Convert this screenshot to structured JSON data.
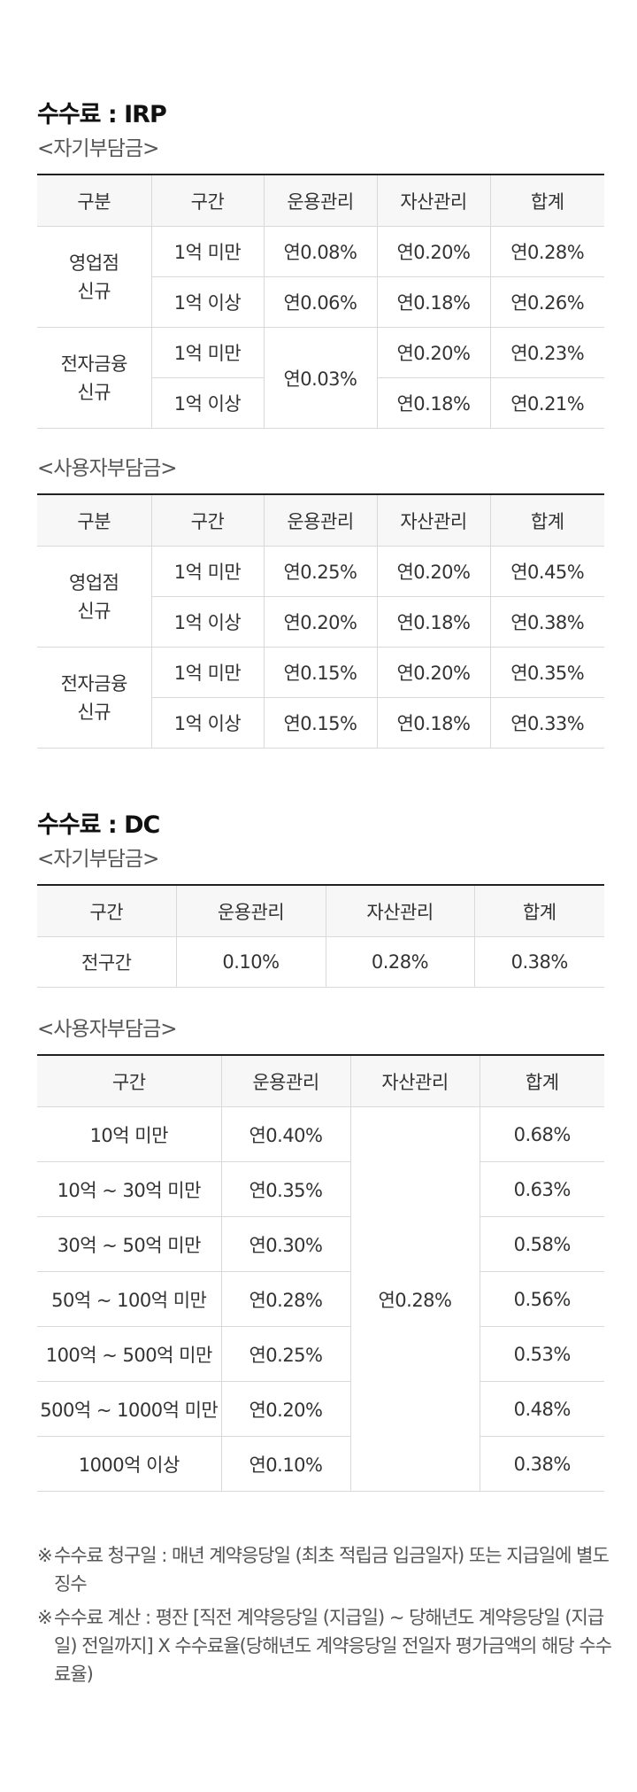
{
  "irp": {
    "title": "수수료 : IRP",
    "self": {
      "subtitle": "<자기부담금>",
      "headers": [
        "구분",
        "구간",
        "운용관리",
        "자산관리",
        "합계"
      ],
      "groups": [
        {
          "category": [
            "영업점",
            "신규"
          ],
          "rows": [
            {
              "range": "1억 미만",
              "mgmt": "연0.08%",
              "asset": "연0.20%",
              "total": "연0.28%"
            },
            {
              "range": "1억 이상",
              "mgmt": "연0.06%",
              "asset": "연0.18%",
              "total": "연0.26%"
            }
          ]
        },
        {
          "category": [
            "전자금융",
            "신규"
          ],
          "mgmt_merged": "연0.03%",
          "rows": [
            {
              "range": "1억 미만",
              "asset": "연0.20%",
              "total": "연0.23%"
            },
            {
              "range": "1억 이상",
              "asset": "연0.18%",
              "total": "연0.21%"
            }
          ]
        }
      ]
    },
    "employer": {
      "subtitle": "<사용자부담금>",
      "headers": [
        "구분",
        "구간",
        "운용관리",
        "자산관리",
        "합계"
      ],
      "groups": [
        {
          "category": [
            "영업점",
            "신규"
          ],
          "rows": [
            {
              "range": "1억 미만",
              "mgmt": "연0.25%",
              "asset": "연0.20%",
              "total": "연0.45%"
            },
            {
              "range": "1억 이상",
              "mgmt": "연0.20%",
              "asset": "연0.18%",
              "total": "연0.38%"
            }
          ]
        },
        {
          "category": [
            "전자금융",
            "신규"
          ],
          "rows": [
            {
              "range": "1억 미만",
              "mgmt": "연0.15%",
              "asset": "연0.20%",
              "total": "연0.35%"
            },
            {
              "range": "1억 이상",
              "mgmt": "연0.15%",
              "asset": "연0.18%",
              "total": "연0.33%"
            }
          ]
        }
      ]
    }
  },
  "dc": {
    "title": "수수료 : DC",
    "self": {
      "subtitle": "<자기부담금>",
      "headers": [
        "구간",
        "운용관리",
        "자산관리",
        "합계"
      ],
      "row": {
        "range": "전구간",
        "mgmt": "0.10%",
        "asset": "0.28%",
        "total": "0.38%"
      }
    },
    "employer": {
      "subtitle": "<사용자부담금>",
      "headers": [
        "구간",
        "운용관리",
        "자산관리",
        "합계"
      ],
      "asset_merged": "연0.28%",
      "rows": [
        {
          "range": "10억 미만",
          "mgmt": "연0.40%",
          "total": "0.68%"
        },
        {
          "range": "10억 ~ 30억 미만",
          "mgmt": "연0.35%",
          "total": "0.63%"
        },
        {
          "range": "30억 ~ 50억 미만",
          "mgmt": "연0.30%",
          "total": "0.58%"
        },
        {
          "range": "50억 ~ 100억 미만",
          "mgmt": "연0.28%",
          "total": "0.56%"
        },
        {
          "range": "100억 ~ 500억 미만",
          "mgmt": "연0.25%",
          "total": "0.53%"
        },
        {
          "range": "500억 ~ 1000억 미만",
          "mgmt": "연0.20%",
          "total": "0.48%"
        },
        {
          "range": "1000억 이상",
          "mgmt": "연0.10%",
          "total": "0.38%"
        }
      ]
    }
  },
  "notes": [
    {
      "mark": "※",
      "text": "수수료 청구일 : 매년 계약응당일 (최초 적립금 입금일자) 또는 지급일에 별도 징수"
    },
    {
      "mark": "※",
      "text": "수수료 계산 : 평잔 [직전 계약응당일 (지급일) ~ 당해년도 계약응당일 (지급일) 전일까지] X 수수료율(당해년도 계약응당일 전일자 평가금액의 해당 수수료율)"
    }
  ]
}
